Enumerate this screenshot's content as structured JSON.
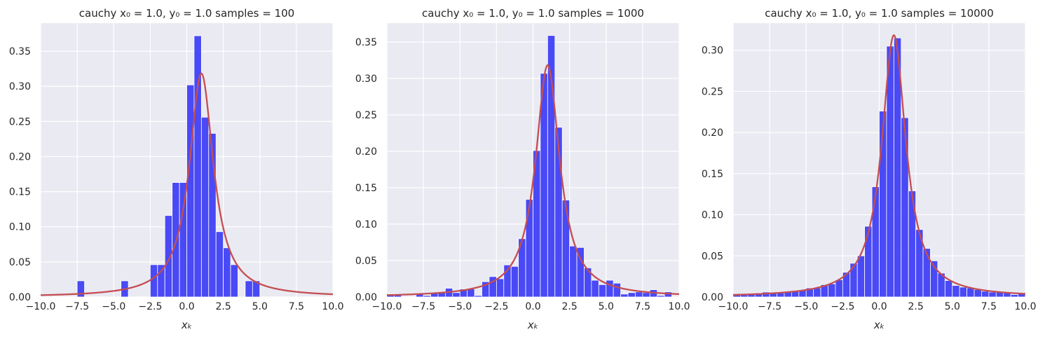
{
  "chart_data": [
    {
      "type": "bar",
      "title": "cauchy x₀ = 1.0, y₀ = 1.0  samples = 100",
      "xlabel": "xₖ",
      "ylabel": "",
      "xlim": [
        -10,
        10
      ],
      "ylim": [
        0,
        0.39
      ],
      "grid": true,
      "x_ticks": [
        "−10.0",
        "−7.5",
        "−5.0",
        "−2.5",
        "0.0",
        "2.5",
        "5.0",
        "7.5",
        "10.0"
      ],
      "y_ticks": [
        "0.00",
        "0.05",
        "0.10",
        "0.15",
        "0.20",
        "0.25",
        "0.30",
        "0.35"
      ],
      "bin_width": 0.5,
      "bins": [
        {
          "x": -7.5,
          "y": 0.023
        },
        {
          "x": -4.5,
          "y": 0.023
        },
        {
          "x": -2.5,
          "y": 0.046
        },
        {
          "x": -2.0,
          "y": 0.046
        },
        {
          "x": -1.5,
          "y": 0.116
        },
        {
          "x": -1.0,
          "y": 0.163
        },
        {
          "x": -0.5,
          "y": 0.163
        },
        {
          "x": 0.0,
          "y": 0.302
        },
        {
          "x": 0.5,
          "y": 0.372
        },
        {
          "x": 1.0,
          "y": 0.256
        },
        {
          "x": 1.5,
          "y": 0.233
        },
        {
          "x": 2.0,
          "y": 0.093
        },
        {
          "x": 2.5,
          "y": 0.07
        },
        {
          "x": 3.0,
          "y": 0.046
        },
        {
          "x": 4.0,
          "y": 0.023
        },
        {
          "x": 4.5,
          "y": 0.023
        }
      ],
      "series": [
        {
          "values_type": "cauchy_pdf",
          "x0": 1.0,
          "gamma": 1.0
        }
      ]
    },
    {
      "type": "bar",
      "title": "cauchy x₀ = 1.0, y₀ = 1.0  samples = 1000",
      "xlabel": "xₖ",
      "ylabel": "",
      "xlim": [
        -10,
        10
      ],
      "ylim": [
        0,
        0.376
      ],
      "grid": true,
      "x_ticks": [
        "−10.0",
        "−7.5",
        "−5.0",
        "−2.5",
        "0.0",
        "2.5",
        "5.0",
        "7.5",
        "10.0"
      ],
      "y_ticks": [
        "0.00",
        "0.05",
        "0.10",
        "0.15",
        "0.20",
        "0.25",
        "0.30",
        "0.35"
      ],
      "bin_width": 0.5,
      "bins": [
        {
          "x": -10.0,
          "y": 0.004
        },
        {
          "x": -9.5,
          "y": 0.004
        },
        {
          "x": -8.0,
          "y": 0.004
        },
        {
          "x": -7.5,
          "y": 0.002
        },
        {
          "x": -7.0,
          "y": 0.005
        },
        {
          "x": -6.5,
          "y": 0.006
        },
        {
          "x": -6.0,
          "y": 0.012
        },
        {
          "x": -5.5,
          "y": 0.006
        },
        {
          "x": -5.0,
          "y": 0.011
        },
        {
          "x": -4.5,
          "y": 0.011
        },
        {
          "x": -4.0,
          "y": 0.002
        },
        {
          "x": -3.5,
          "y": 0.021
        },
        {
          "x": -3.0,
          "y": 0.028
        },
        {
          "x": -2.5,
          "y": 0.025
        },
        {
          "x": -2.0,
          "y": 0.044
        },
        {
          "x": -1.5,
          "y": 0.042
        },
        {
          "x": -1.0,
          "y": 0.08
        },
        {
          "x": -0.5,
          "y": 0.134
        },
        {
          "x": 0.0,
          "y": 0.201
        },
        {
          "x": 0.5,
          "y": 0.307
        },
        {
          "x": 1.0,
          "y": 0.359
        },
        {
          "x": 1.5,
          "y": 0.233
        },
        {
          "x": 2.0,
          "y": 0.133
        },
        {
          "x": 2.5,
          "y": 0.07
        },
        {
          "x": 3.0,
          "y": 0.068
        },
        {
          "x": 3.5,
          "y": 0.04
        },
        {
          "x": 4.0,
          "y": 0.023
        },
        {
          "x": 4.5,
          "y": 0.017
        },
        {
          "x": 5.0,
          "y": 0.023
        },
        {
          "x": 5.5,
          "y": 0.019
        },
        {
          "x": 6.0,
          "y": 0.004
        },
        {
          "x": 6.5,
          "y": 0.006
        },
        {
          "x": 7.0,
          "y": 0.007
        },
        {
          "x": 7.5,
          "y": 0.006
        },
        {
          "x": 8.0,
          "y": 0.01
        },
        {
          "x": 8.5,
          "y": 0.002
        },
        {
          "x": 9.0,
          "y": 0.007
        }
      ],
      "series": [
        {
          "values_type": "cauchy_pdf",
          "x0": 1.0,
          "gamma": 1.0
        }
      ]
    },
    {
      "type": "bar",
      "title": "cauchy x₀ = 1.0, y₀ = 1.0  samples = 10000",
      "xlabel": "xₖ",
      "ylabel": "",
      "xlim": [
        -10,
        10
      ],
      "ylim": [
        0,
        0.333
      ],
      "grid": true,
      "x_ticks": [
        "−10.0",
        "−7.5",
        "−5.0",
        "−2.5",
        "0.0",
        "2.5",
        "5.0",
        "7.5",
        "10.0"
      ],
      "y_ticks": [
        "0.00",
        "0.05",
        "0.10",
        "0.15",
        "0.20",
        "0.25",
        "0.30"
      ],
      "bin_width": 0.5,
      "bins": [
        {
          "x": -10.0,
          "y": 0.003
        },
        {
          "x": -9.5,
          "y": 0.003
        },
        {
          "x": -9.0,
          "y": 0.004
        },
        {
          "x": -8.5,
          "y": 0.005
        },
        {
          "x": -8.0,
          "y": 0.006
        },
        {
          "x": -7.5,
          "y": 0.005
        },
        {
          "x": -7.0,
          "y": 0.006
        },
        {
          "x": -6.5,
          "y": 0.006
        },
        {
          "x": -6.0,
          "y": 0.007
        },
        {
          "x": -5.5,
          "y": 0.008
        },
        {
          "x": -5.0,
          "y": 0.011
        },
        {
          "x": -4.5,
          "y": 0.011
        },
        {
          "x": -4.0,
          "y": 0.015
        },
        {
          "x": -3.5,
          "y": 0.016
        },
        {
          "x": -3.0,
          "y": 0.021
        },
        {
          "x": -2.5,
          "y": 0.03
        },
        {
          "x": -2.0,
          "y": 0.041
        },
        {
          "x": -1.5,
          "y": 0.05
        },
        {
          "x": -1.0,
          "y": 0.086
        },
        {
          "x": -0.5,
          "y": 0.134
        },
        {
          "x": 0.0,
          "y": 0.226
        },
        {
          "x": 0.5,
          "y": 0.305
        },
        {
          "x": 1.0,
          "y": 0.315
        },
        {
          "x": 1.5,
          "y": 0.218
        },
        {
          "x": 2.0,
          "y": 0.129
        },
        {
          "x": 2.5,
          "y": 0.082
        },
        {
          "x": 3.0,
          "y": 0.059
        },
        {
          "x": 3.5,
          "y": 0.044
        },
        {
          "x": 4.0,
          "y": 0.029
        },
        {
          "x": 4.5,
          "y": 0.02
        },
        {
          "x": 5.0,
          "y": 0.014
        },
        {
          "x": 5.5,
          "y": 0.012
        },
        {
          "x": 6.0,
          "y": 0.011
        },
        {
          "x": 6.5,
          "y": 0.009
        },
        {
          "x": 7.0,
          "y": 0.007
        },
        {
          "x": 7.5,
          "y": 0.006
        },
        {
          "x": 8.0,
          "y": 0.006
        },
        {
          "x": 8.5,
          "y": 0.005
        },
        {
          "x": 9.0,
          "y": 0.003
        },
        {
          "x": 9.5,
          "y": 0.004
        }
      ],
      "series": [
        {
          "values_type": "cauchy_pdf",
          "x0": 1.0,
          "gamma": 1.0
        }
      ]
    }
  ],
  "colors": {
    "background": "#eaeaf2",
    "grid": "#ffffff",
    "bar": "#4040f5",
    "curve": "#c44e52",
    "text": "#262626"
  }
}
